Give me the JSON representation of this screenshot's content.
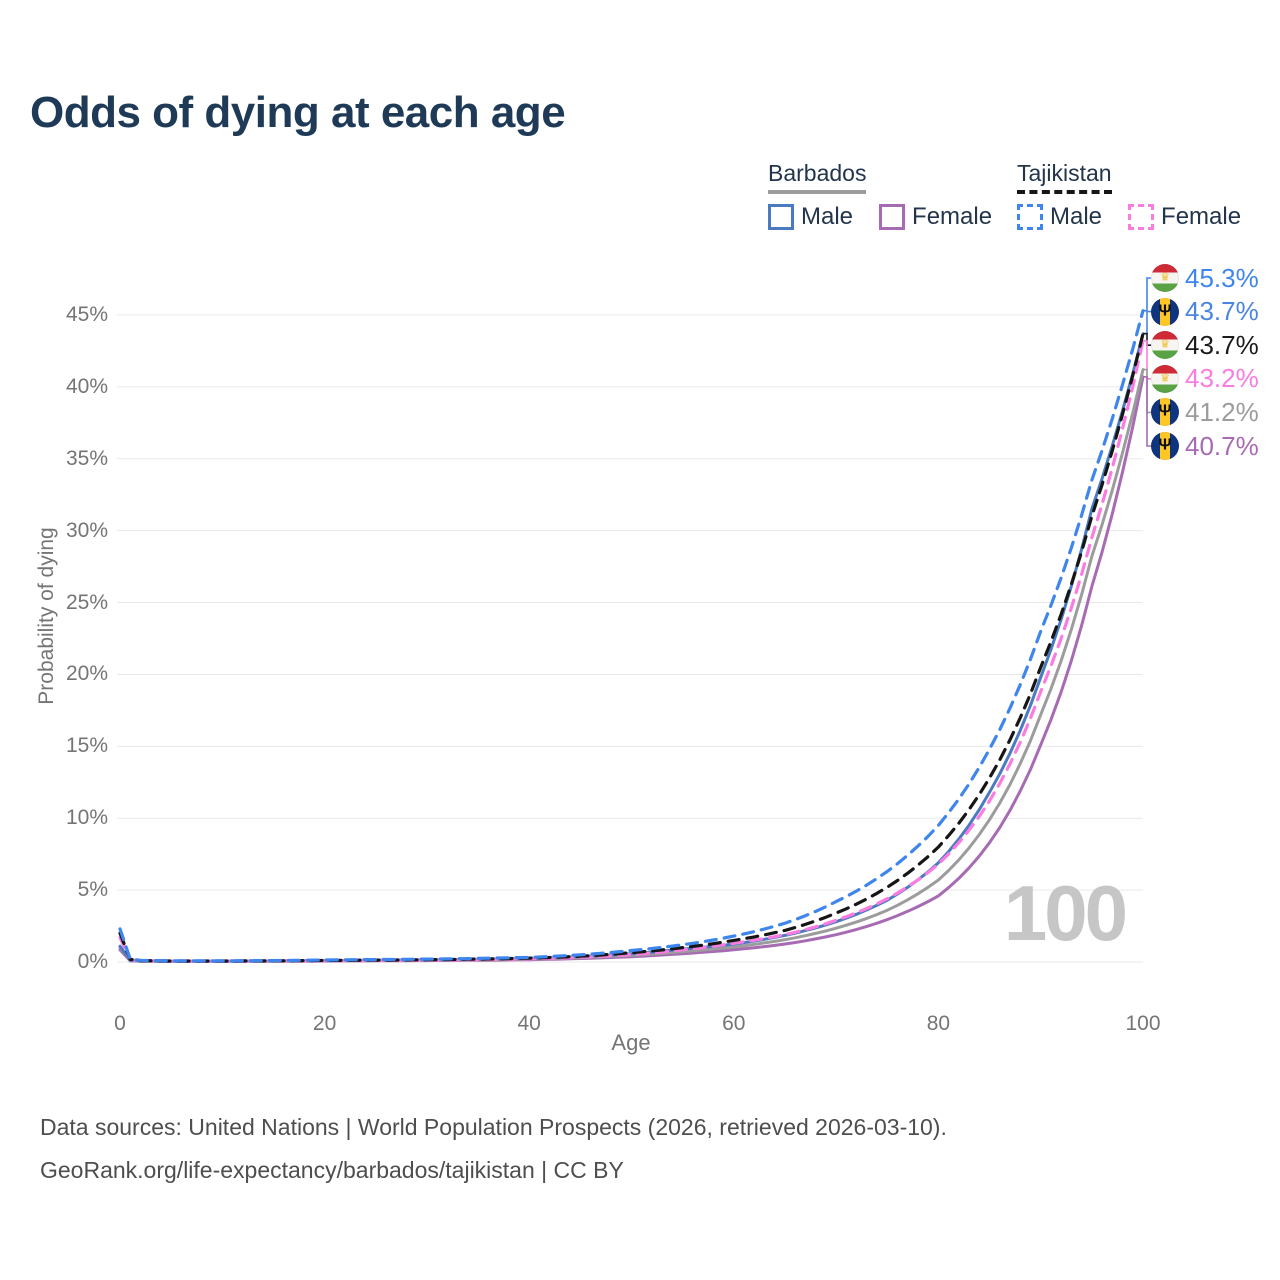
{
  "title": "Odds of dying at each age",
  "legend": {
    "groups": [
      {
        "id": "barbados",
        "label": "Barbados",
        "line_style": "solid",
        "line_color": "#9c9c9c",
        "items": [
          {
            "id": "barbados-male",
            "label": "Male",
            "color": "#4a7bc0",
            "dash": false
          },
          {
            "id": "barbados-female",
            "label": "Female",
            "color": "#a76bb4",
            "dash": false
          }
        ]
      },
      {
        "id": "tajikistan",
        "label": "Tajikistan",
        "line_style": "dashed",
        "line_color": "#161616",
        "items": [
          {
            "id": "tajikistan-male",
            "label": "Male",
            "color": "#3e86ee",
            "dash": true
          },
          {
            "id": "tajikistan-female",
            "label": "Female",
            "color": "#fb7ce1",
            "dash": true
          }
        ]
      }
    ]
  },
  "chart_data": {
    "type": "line",
    "title": "Odds of dying at each age",
    "xlabel": "Age",
    "ylabel": "Probability of dying",
    "xlim": [
      0,
      100
    ],
    "ylim": [
      0,
      47
    ],
    "grid": "horizontal",
    "legend_position": "top-right",
    "x_ticks": [
      "0",
      "20",
      "40",
      "60",
      "80",
      "100"
    ],
    "y_ticks": [
      "0%",
      "5%",
      "10%",
      "15%",
      "20%",
      "25%",
      "30%",
      "35%",
      "40%",
      "45%"
    ],
    "x": [
      0,
      1,
      2,
      5,
      10,
      15,
      20,
      25,
      30,
      35,
      40,
      45,
      50,
      55,
      60,
      65,
      70,
      75,
      80,
      85,
      90,
      95,
      100
    ],
    "series": [
      {
        "id": "barbados-female",
        "name": "Barbados Female",
        "color": "#a76bb4",
        "dash": false,
        "values": [
          0.85,
          0.08,
          0.05,
          0.04,
          0.04,
          0.05,
          0.06,
          0.08,
          0.1,
          0.12,
          0.16,
          0.24,
          0.37,
          0.58,
          0.85,
          1.25,
          1.9,
          2.95,
          4.6,
          8.3,
          15.1,
          26.1,
          40.7
        ]
      },
      {
        "id": "barbados-both",
        "name": "Barbados",
        "color": "#9c9c9c",
        "dash": false,
        "values": [
          1.0,
          0.09,
          0.06,
          0.04,
          0.04,
          0.06,
          0.08,
          0.1,
          0.12,
          0.15,
          0.2,
          0.3,
          0.46,
          0.72,
          1.05,
          1.55,
          2.35,
          3.6,
          5.7,
          9.9,
          17.2,
          28.2,
          41.2
        ]
      },
      {
        "id": "barbados-male",
        "name": "Barbados Male",
        "color": "#4a7bc0",
        "dash": false,
        "values": [
          1.1,
          0.1,
          0.07,
          0.05,
          0.05,
          0.07,
          0.1,
          0.12,
          0.15,
          0.19,
          0.26,
          0.38,
          0.58,
          0.9,
          1.25,
          1.85,
          2.8,
          4.3,
          6.9,
          11.8,
          19.8,
          31.5,
          43.7
        ]
      },
      {
        "id": "tajikistan-female",
        "name": "Tajikistan Female",
        "color": "#fb7ce1",
        "dash": true,
        "values": [
          1.7,
          0.15,
          0.09,
          0.06,
          0.06,
          0.07,
          0.09,
          0.11,
          0.13,
          0.17,
          0.22,
          0.33,
          0.52,
          0.85,
          1.3,
          1.9,
          2.9,
          4.4,
          6.8,
          11.2,
          18.8,
          29.5,
          43.2
        ]
      },
      {
        "id": "tajikistan-both",
        "name": "Tajikistan",
        "color": "#161616",
        "dash": true,
        "values": [
          2.0,
          0.18,
          0.1,
          0.07,
          0.07,
          0.08,
          0.11,
          0.13,
          0.16,
          0.2,
          0.27,
          0.4,
          0.65,
          1.0,
          1.5,
          2.2,
          3.4,
          5.2,
          8.0,
          12.8,
          20.5,
          31.0,
          43.7
        ]
      },
      {
        "id": "tajikistan-male",
        "name": "Tajikistan Male",
        "color": "#3e86ee",
        "dash": true,
        "values": [
          2.3,
          0.2,
          0.12,
          0.08,
          0.08,
          0.1,
          0.14,
          0.17,
          0.2,
          0.25,
          0.32,
          0.5,
          0.8,
          1.2,
          1.8,
          2.7,
          4.2,
          6.3,
          9.5,
          14.8,
          23.0,
          33.5,
          45.3
        ]
      }
    ],
    "end_labels": [
      {
        "series": "tajikistan-male",
        "flag": "tajikistan",
        "text": "45.3%",
        "color": "#3e86ee"
      },
      {
        "series": "barbados-male",
        "flag": "barbados",
        "text": "43.7%",
        "color": "#4a86e0"
      },
      {
        "series": "tajikistan-both",
        "flag": "tajikistan",
        "text": "43.7%",
        "color": "#1b1b1b"
      },
      {
        "series": "tajikistan-female",
        "flag": "tajikistan",
        "text": "43.2%",
        "color": "#fb7ce1"
      },
      {
        "series": "barbados-both",
        "flag": "barbados",
        "text": "41.2%",
        "color": "#9c9c9c"
      },
      {
        "series": "barbados-female",
        "flag": "barbados",
        "text": "40.7%",
        "color": "#a76bb4"
      }
    ]
  },
  "watermark": "100",
  "footer": {
    "line1": "Data sources: United Nations | World Population Prospects (2026, retrieved 2026-03-10).",
    "line2": "GeoRank.org/life-expectancy/barbados/tajikistan | CC BY"
  }
}
